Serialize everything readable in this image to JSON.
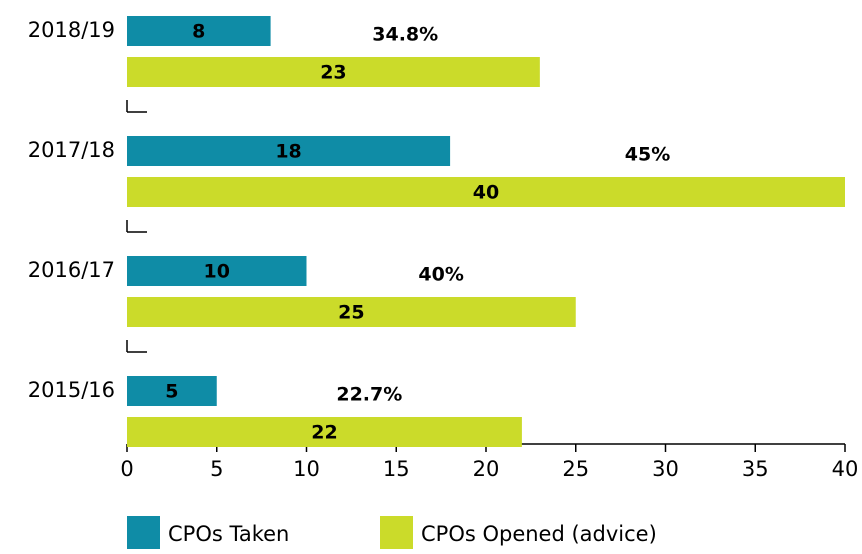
{
  "chart_data": {
    "type": "bar",
    "orientation": "horizontal",
    "categories": [
      "2018/19",
      "2017/18",
      "2016/17",
      "2015/16"
    ],
    "series": [
      {
        "name": "CPOs Taken",
        "color": "#0f8ca6",
        "values": [
          8,
          18,
          10,
          5
        ]
      },
      {
        "name": "CPOs Opened (advice)",
        "color": "#cbdb2a",
        "values": [
          23,
          40,
          25,
          22
        ]
      }
    ],
    "annotations": [
      "34.8%",
      "45%",
      "40%",
      "22.7%"
    ],
    "xlim": [
      0,
      40
    ],
    "xticks": [
      0,
      5,
      10,
      15,
      20,
      25,
      30,
      35,
      40
    ],
    "legend": "bottom"
  }
}
